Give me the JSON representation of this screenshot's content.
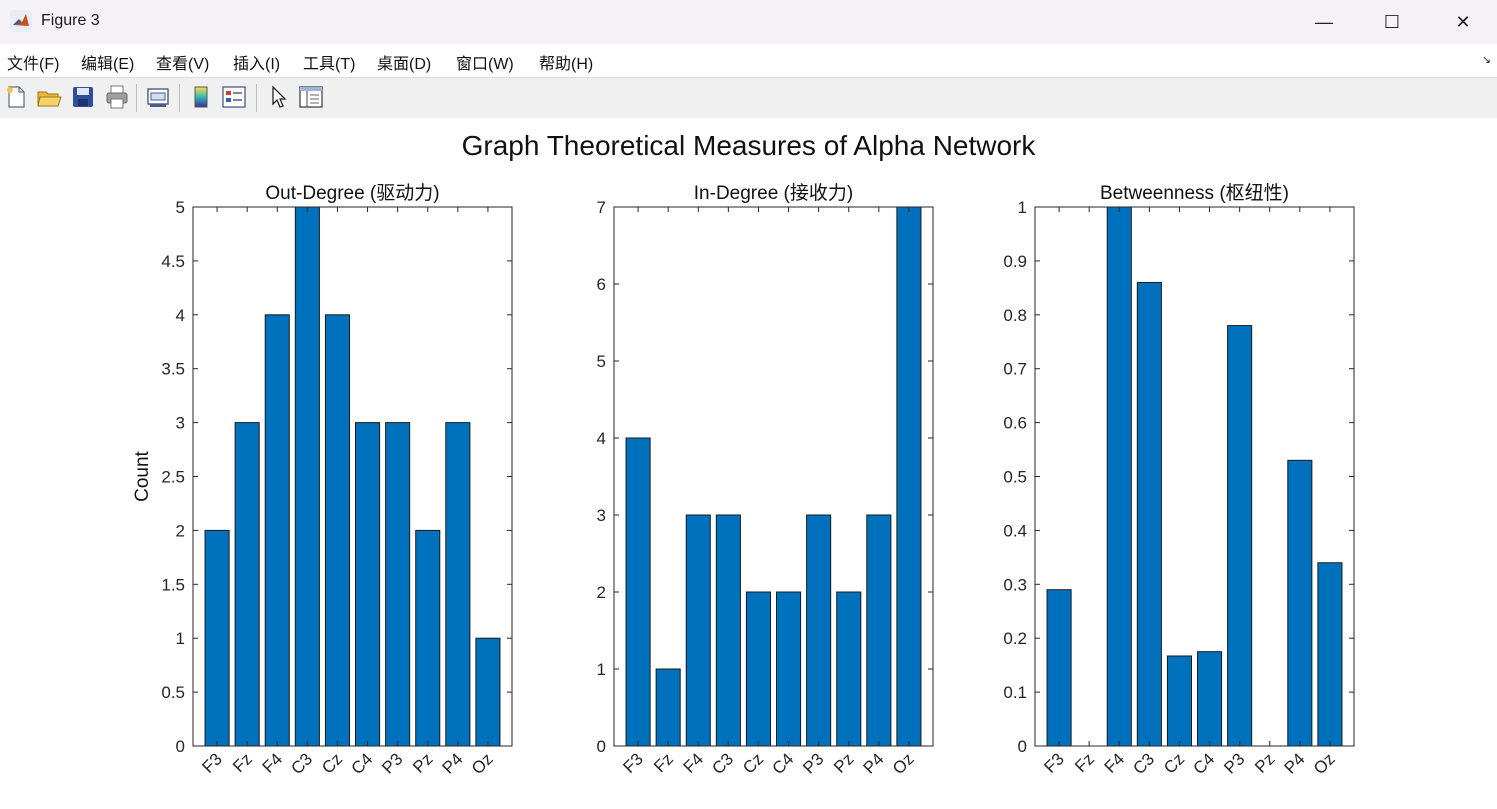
{
  "window": {
    "title": "Figure 3",
    "controls": {
      "minimize": "—",
      "maximize": "☐",
      "close": "✕"
    }
  },
  "menu": {
    "items": [
      "文件(F)",
      "编辑(E)",
      "查看(V)",
      "插入(I)",
      "工具(T)",
      "桌面(D)",
      "窗口(W)",
      "帮助(H)"
    ],
    "dock_icon": "↘"
  },
  "toolbar": {
    "buttons": [
      "new-figure-icon",
      "open-file-icon",
      "save-icon",
      "print-icon",
      "link-plot-icon",
      "colorbar-icon",
      "legend-icon",
      "edit-plot-arrow-icon",
      "property-inspector-icon"
    ]
  },
  "figure": {
    "suptitle": "Graph Theoretical Measures of Alpha Network",
    "bar_color": "#0072BD"
  },
  "chart_data": [
    {
      "type": "bar",
      "title": "Out-Degree (驱动力)",
      "xlabel": "",
      "ylabel": "Count",
      "categories": [
        "F3",
        "Fz",
        "F4",
        "C3",
        "Cz",
        "C4",
        "P3",
        "Pz",
        "P4",
        "Oz"
      ],
      "values": [
        2,
        3,
        4,
        5,
        4,
        3,
        3,
        2,
        3,
        1
      ],
      "ylim": [
        0,
        5
      ],
      "yticks": [
        "0",
        "0.5",
        "1",
        "1.5",
        "2",
        "2.5",
        "3",
        "3.5",
        "4",
        "4.5",
        "5"
      ],
      "grid": false
    },
    {
      "type": "bar",
      "title": "In-Degree (接收力)",
      "xlabel": "",
      "ylabel": "",
      "categories": [
        "F3",
        "Fz",
        "F4",
        "C3",
        "Cz",
        "C4",
        "P3",
        "Pz",
        "P4",
        "Oz"
      ],
      "values": [
        4,
        1,
        3,
        3,
        2,
        2,
        3,
        2,
        3,
        7
      ],
      "ylim": [
        0,
        7
      ],
      "yticks": [
        "0",
        "1",
        "2",
        "3",
        "4",
        "5",
        "6",
        "7"
      ],
      "grid": false
    },
    {
      "type": "bar",
      "title": "Betweenness (枢纽性)",
      "xlabel": "",
      "ylabel": "",
      "categories": [
        "F3",
        "Fz",
        "F4",
        "C3",
        "Cz",
        "C4",
        "P3",
        "Pz",
        "P4",
        "Oz"
      ],
      "values": [
        0.29,
        0,
        1.0,
        0.86,
        0.167,
        0.175,
        0.78,
        0,
        0.53,
        0.34
      ],
      "ylim": [
        0,
        1
      ],
      "yticks": [
        "0",
        "0.1",
        "0.2",
        "0.3",
        "0.4",
        "0.5",
        "0.6",
        "0.7",
        "0.8",
        "0.9",
        "1"
      ],
      "grid": false
    }
  ]
}
